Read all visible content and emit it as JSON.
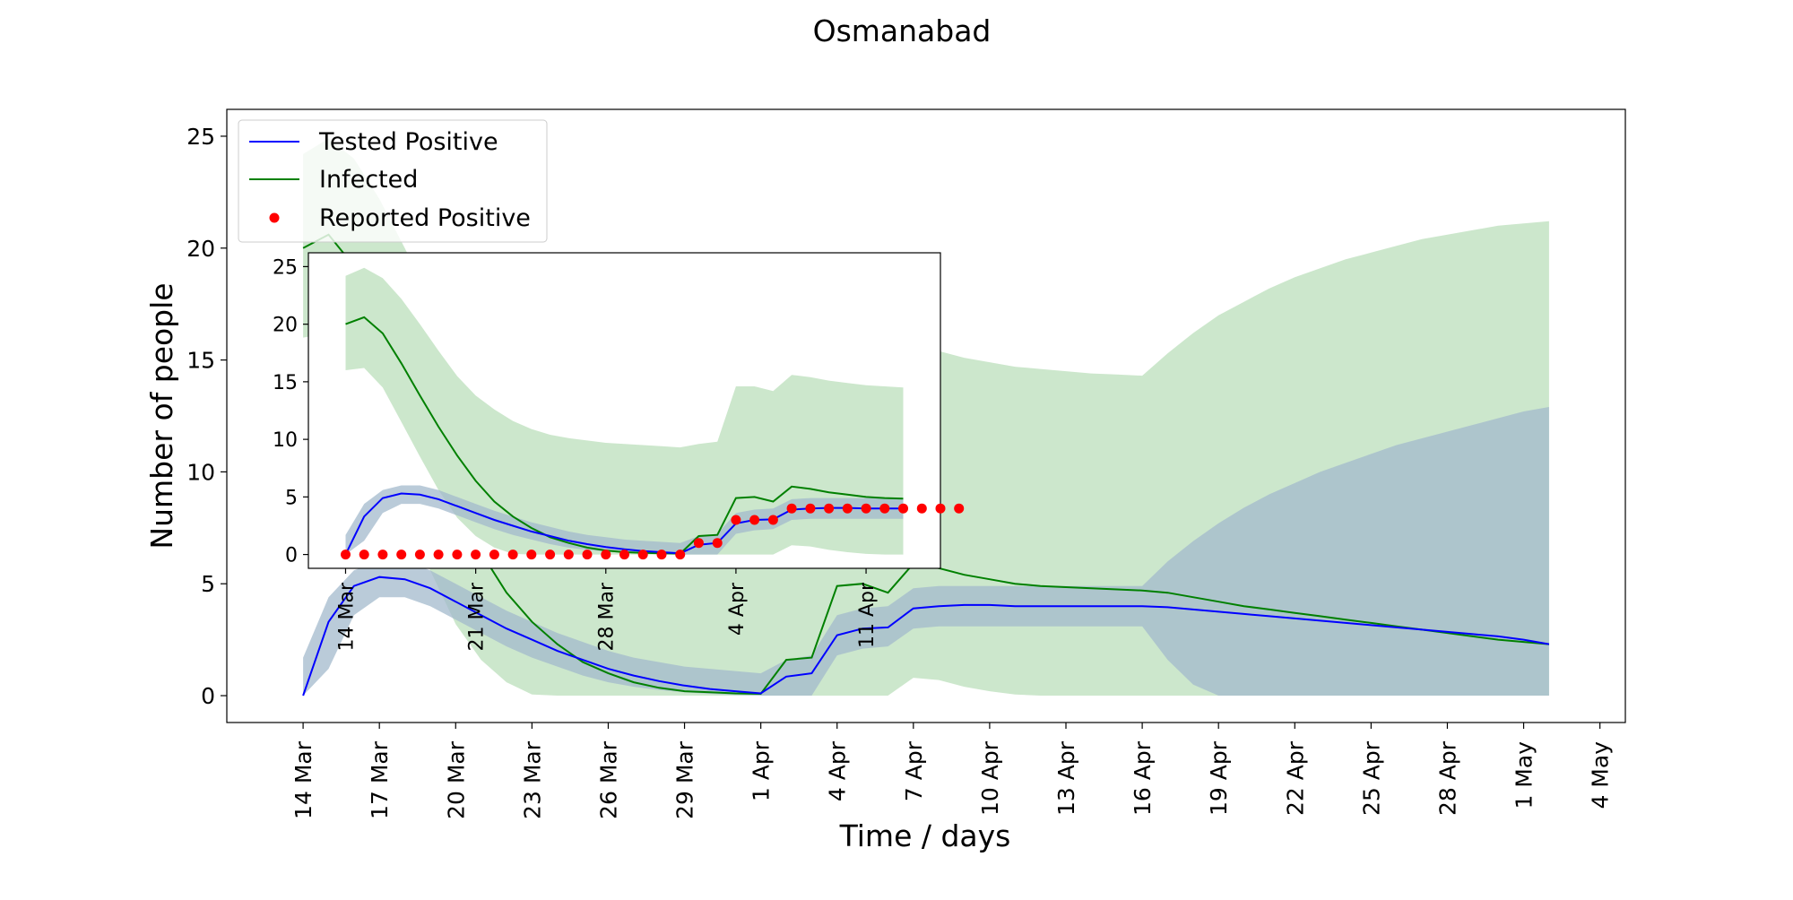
{
  "chart_data": [
    {
      "id": "main",
      "type": "line",
      "title": "Osmanabad",
      "xlabel": "Time / days",
      "ylabel": "Number of people",
      "x_type": "date",
      "x_start": "2020-03-14",
      "xlim": [
        "2020-03-11",
        "2020-05-05"
      ],
      "ylim": [
        -1.2,
        26.2
      ],
      "yticks": [
        0,
        5,
        10,
        15,
        20,
        25
      ],
      "xtick_labels": [
        "14 Mar",
        "17 Mar",
        "20 Mar",
        "23 Mar",
        "26 Mar",
        "29 Mar",
        "1 Apr",
        "4 Apr",
        "7 Apr",
        "10 Apr",
        "13 Apr",
        "16 Apr",
        "19 Apr",
        "22 Apr",
        "25 Apr",
        "28 Apr",
        "1 May",
        "4 May"
      ],
      "xtick_dates": [
        "2020-03-14",
        "2020-03-17",
        "2020-03-20",
        "2020-03-23",
        "2020-03-26",
        "2020-03-29",
        "2020-04-01",
        "2020-04-04",
        "2020-04-07",
        "2020-04-10",
        "2020-04-13",
        "2020-04-16",
        "2020-04-19",
        "2020-04-22",
        "2020-04-25",
        "2020-04-28",
        "2020-05-01",
        "2020-05-04"
      ],
      "legend": {
        "placement": "upper left",
        "entries": [
          {
            "label": "Tested Positive",
            "marker": "line",
            "color": "#0000ff"
          },
          {
            "label": "Infected",
            "marker": "line",
            "color": "#008000"
          },
          {
            "label": "Reported Positive",
            "marker": "dot",
            "color": "#ff0000"
          }
        ]
      },
      "series": [
        {
          "name": "Infected",
          "color": "#008000",
          "band_color": "#8fca8f",
          "x": [
            "2020-03-14",
            "2020-03-15",
            "2020-03-16",
            "2020-03-17",
            "2020-03-18",
            "2020-03-19",
            "2020-03-20",
            "2020-03-21",
            "2020-03-22",
            "2020-03-23",
            "2020-03-24",
            "2020-03-25",
            "2020-03-26",
            "2020-03-27",
            "2020-03-28",
            "2020-03-29",
            "2020-03-30",
            "2020-03-31",
            "2020-04-01",
            "2020-04-02",
            "2020-04-03",
            "2020-04-04",
            "2020-04-05",
            "2020-04-06",
            "2020-04-07",
            "2020-04-08",
            "2020-04-09",
            "2020-04-10",
            "2020-04-11",
            "2020-04-12",
            "2020-04-13",
            "2020-04-14",
            "2020-04-15",
            "2020-04-16",
            "2020-04-17",
            "2020-04-18",
            "2020-04-19",
            "2020-04-20",
            "2020-04-21",
            "2020-04-22",
            "2020-04-23",
            "2020-04-24",
            "2020-04-25",
            "2020-04-26",
            "2020-04-27",
            "2020-04-28",
            "2020-04-29",
            "2020-04-30",
            "2020-05-01",
            "2020-05-02"
          ],
          "values": [
            20.0,
            20.6,
            19.2,
            16.6,
            13.8,
            11.1,
            8.6,
            6.4,
            4.6,
            3.3,
            2.3,
            1.5,
            1.0,
            0.6,
            0.35,
            0.2,
            0.15,
            0.1,
            0.08,
            1.6,
            1.7,
            4.9,
            5.0,
            4.6,
            5.9,
            5.7,
            5.4,
            5.2,
            5.0,
            4.9,
            4.85,
            4.8,
            4.75,
            4.7,
            4.6,
            4.4,
            4.2,
            4.0,
            3.85,
            3.7,
            3.55,
            3.4,
            3.25,
            3.1,
            2.95,
            2.8,
            2.65,
            2.5,
            2.4,
            2.3
          ],
          "lower": [
            16.0,
            16.2,
            14.5,
            11.5,
            8.5,
            5.6,
            3.2,
            1.6,
            0.6,
            0.05,
            0,
            0,
            0,
            0,
            0,
            0,
            0,
            0,
            0,
            0,
            0,
            0,
            0,
            0,
            0.8,
            0.7,
            0.4,
            0.2,
            0.05,
            0,
            0,
            0,
            0,
            0,
            0,
            0,
            0,
            0,
            0,
            0,
            0,
            0,
            0,
            0,
            0,
            0,
            0,
            0,
            0,
            0
          ],
          "upper": [
            24.2,
            24.9,
            24.0,
            22.2,
            20.0,
            17.7,
            15.5,
            13.8,
            12.6,
            11.6,
            10.9,
            10.4,
            10.1,
            9.9,
            9.7,
            9.6,
            9.5,
            9.4,
            9.3,
            9.6,
            9.8,
            14.6,
            14.6,
            14.2,
            15.6,
            15.4,
            15.1,
            14.9,
            14.7,
            14.6,
            14.5,
            14.4,
            14.35,
            14.3,
            15.3,
            16.2,
            17.0,
            17.6,
            18.2,
            18.7,
            19.1,
            19.5,
            19.8,
            20.1,
            20.4,
            20.6,
            20.8,
            21.0,
            21.1,
            21.2
          ]
        },
        {
          "name": "Tested Positive",
          "color": "#0000ff",
          "band_color": "#a3b9cc",
          "x": [
            "2020-03-14",
            "2020-03-15",
            "2020-03-16",
            "2020-03-17",
            "2020-03-18",
            "2020-03-19",
            "2020-03-20",
            "2020-03-21",
            "2020-03-22",
            "2020-03-23",
            "2020-03-24",
            "2020-03-25",
            "2020-03-26",
            "2020-03-27",
            "2020-03-28",
            "2020-03-29",
            "2020-03-30",
            "2020-03-31",
            "2020-04-01",
            "2020-04-02",
            "2020-04-03",
            "2020-04-04",
            "2020-04-05",
            "2020-04-06",
            "2020-04-07",
            "2020-04-08",
            "2020-04-09",
            "2020-04-10",
            "2020-04-11",
            "2020-04-12",
            "2020-04-13",
            "2020-04-14",
            "2020-04-15",
            "2020-04-16",
            "2020-04-17",
            "2020-04-18",
            "2020-04-19",
            "2020-04-20",
            "2020-04-21",
            "2020-04-22",
            "2020-04-23",
            "2020-04-24",
            "2020-04-25",
            "2020-04-26",
            "2020-04-27",
            "2020-04-28",
            "2020-04-29",
            "2020-04-30",
            "2020-05-01",
            "2020-05-02"
          ],
          "values": [
            0,
            3.3,
            4.9,
            5.3,
            5.2,
            4.8,
            4.2,
            3.6,
            3.0,
            2.5,
            2.0,
            1.6,
            1.2,
            0.9,
            0.65,
            0.45,
            0.3,
            0.2,
            0.1,
            0.85,
            1.0,
            2.7,
            3.0,
            3.05,
            3.9,
            4.0,
            4.05,
            4.05,
            4.0,
            4.0,
            4.0,
            4.0,
            4.0,
            4.0,
            3.95,
            3.85,
            3.75,
            3.65,
            3.55,
            3.45,
            3.35,
            3.25,
            3.15,
            3.05,
            2.95,
            2.85,
            2.75,
            2.65,
            2.5,
            2.3
          ],
          "lower": [
            0,
            1.2,
            3.6,
            4.4,
            4.4,
            4.0,
            3.4,
            2.8,
            2.2,
            1.7,
            1.3,
            0.9,
            0.6,
            0.4,
            0.25,
            0.15,
            0.08,
            0.03,
            0,
            0,
            0,
            1.8,
            2.1,
            2.2,
            3.0,
            3.1,
            3.1,
            3.1,
            3.1,
            3.1,
            3.1,
            3.1,
            3.1,
            3.1,
            1.6,
            0.5,
            0,
            0,
            0,
            0,
            0,
            0,
            0,
            0,
            0,
            0,
            0,
            0,
            0,
            0
          ],
          "upper": [
            1.7,
            4.4,
            5.6,
            6.0,
            6.0,
            5.6,
            5.0,
            4.4,
            3.8,
            3.3,
            2.8,
            2.4,
            2.0,
            1.7,
            1.5,
            1.3,
            1.2,
            1.1,
            1.0,
            1.6,
            1.8,
            3.6,
            3.9,
            4.0,
            4.8,
            4.9,
            4.9,
            4.9,
            4.9,
            4.9,
            4.9,
            4.9,
            4.9,
            4.9,
            6.0,
            6.9,
            7.7,
            8.4,
            9.0,
            9.5,
            10.0,
            10.4,
            10.8,
            11.2,
            11.5,
            11.8,
            12.1,
            12.4,
            12.7,
            12.9
          ]
        }
      ]
    },
    {
      "id": "inset",
      "type": "line",
      "x_type": "date",
      "x_start": "2020-03-14",
      "xlim": [
        "2020-03-12",
        "2020-04-15"
      ],
      "ylim": [
        -1.2,
        26.2
      ],
      "yticks": [
        0,
        5,
        10,
        15,
        20,
        25
      ],
      "xtick_labels": [
        "14 Mar",
        "21 Mar",
        "28 Mar",
        "4 Apr",
        "11 Apr"
      ],
      "xtick_dates": [
        "2020-03-14",
        "2020-03-21",
        "2020-03-28",
        "2020-04-04",
        "2020-04-11"
      ],
      "series": [
        {
          "name": "Infected",
          "color": "#008000",
          "band_color": "#8fca8f",
          "x": [
            "2020-03-14",
            "2020-03-15",
            "2020-03-16",
            "2020-03-17",
            "2020-03-18",
            "2020-03-19",
            "2020-03-20",
            "2020-03-21",
            "2020-03-22",
            "2020-03-23",
            "2020-03-24",
            "2020-03-25",
            "2020-03-26",
            "2020-03-27",
            "2020-03-28",
            "2020-03-29",
            "2020-03-30",
            "2020-03-31",
            "2020-04-01",
            "2020-04-02",
            "2020-04-03",
            "2020-04-04",
            "2020-04-05",
            "2020-04-06",
            "2020-04-07",
            "2020-04-08",
            "2020-04-09",
            "2020-04-10",
            "2020-04-11",
            "2020-04-12",
            "2020-04-13"
          ],
          "values": [
            20.0,
            20.6,
            19.2,
            16.6,
            13.8,
            11.1,
            8.6,
            6.4,
            4.6,
            3.3,
            2.3,
            1.5,
            1.0,
            0.6,
            0.35,
            0.2,
            0.15,
            0.1,
            0.08,
            1.6,
            1.7,
            4.9,
            5.0,
            4.6,
            5.9,
            5.7,
            5.4,
            5.2,
            5.0,
            4.9,
            4.85
          ],
          "lower": [
            16.0,
            16.2,
            14.5,
            11.5,
            8.5,
            5.6,
            3.2,
            1.6,
            0.6,
            0.05,
            0,
            0,
            0,
            0,
            0,
            0,
            0,
            0,
            0,
            0,
            0,
            0,
            0,
            0,
            0.8,
            0.7,
            0.4,
            0.2,
            0.05,
            0,
            0
          ],
          "upper": [
            24.2,
            24.9,
            24.0,
            22.2,
            20.0,
            17.7,
            15.5,
            13.8,
            12.6,
            11.6,
            10.9,
            10.4,
            10.1,
            9.9,
            9.7,
            9.6,
            9.5,
            9.4,
            9.3,
            9.6,
            9.8,
            14.6,
            14.6,
            14.2,
            15.6,
            15.4,
            15.1,
            14.9,
            14.7,
            14.6,
            14.5
          ]
        },
        {
          "name": "Tested Positive",
          "color": "#0000ff",
          "band_color": "#a3b9cc",
          "x": [
            "2020-03-14",
            "2020-03-15",
            "2020-03-16",
            "2020-03-17",
            "2020-03-18",
            "2020-03-19",
            "2020-03-20",
            "2020-03-21",
            "2020-03-22",
            "2020-03-23",
            "2020-03-24",
            "2020-03-25",
            "2020-03-26",
            "2020-03-27",
            "2020-03-28",
            "2020-03-29",
            "2020-03-30",
            "2020-03-31",
            "2020-04-01",
            "2020-04-02",
            "2020-04-03",
            "2020-04-04",
            "2020-04-05",
            "2020-04-06",
            "2020-04-07",
            "2020-04-08",
            "2020-04-09",
            "2020-04-10",
            "2020-04-11",
            "2020-04-12",
            "2020-04-13"
          ],
          "values": [
            0,
            3.3,
            4.9,
            5.3,
            5.2,
            4.8,
            4.2,
            3.6,
            3.0,
            2.5,
            2.0,
            1.6,
            1.2,
            0.9,
            0.65,
            0.45,
            0.3,
            0.2,
            0.1,
            0.85,
            1.0,
            2.7,
            3.0,
            3.05,
            3.9,
            4.0,
            4.05,
            4.05,
            4.0,
            4.0,
            4.0
          ],
          "lower": [
            0,
            1.2,
            3.6,
            4.4,
            4.4,
            4.0,
            3.4,
            2.8,
            2.2,
            1.7,
            1.3,
            0.9,
            0.6,
            0.4,
            0.25,
            0.15,
            0.08,
            0.03,
            0,
            0,
            0,
            1.8,
            2.1,
            2.2,
            3.0,
            3.1,
            3.1,
            3.1,
            3.1,
            3.1,
            3.1
          ],
          "upper": [
            1.7,
            4.4,
            5.6,
            6.0,
            6.0,
            5.6,
            5.0,
            4.4,
            3.8,
            3.3,
            2.8,
            2.4,
            2.0,
            1.7,
            1.5,
            1.3,
            1.2,
            1.1,
            1.0,
            1.6,
            1.8,
            3.6,
            3.9,
            4.0,
            4.8,
            4.9,
            4.9,
            4.9,
            4.9,
            4.9,
            4.9
          ]
        },
        {
          "name": "Reported Positive",
          "type": "scatter",
          "color": "#ff0000",
          "x": [
            "2020-03-14",
            "2020-03-15",
            "2020-03-16",
            "2020-03-17",
            "2020-03-18",
            "2020-03-19",
            "2020-03-20",
            "2020-03-21",
            "2020-03-22",
            "2020-03-23",
            "2020-03-24",
            "2020-03-25",
            "2020-03-26",
            "2020-03-27",
            "2020-03-28",
            "2020-03-29",
            "2020-03-30",
            "2020-03-31",
            "2020-04-01",
            "2020-04-02",
            "2020-04-03",
            "2020-04-04",
            "2020-04-05",
            "2020-04-06",
            "2020-04-07",
            "2020-04-08",
            "2020-04-09",
            "2020-04-10",
            "2020-04-11",
            "2020-04-12",
            "2020-04-13",
            "2020-04-14",
            "2020-04-15",
            "2020-04-16"
          ],
          "values": [
            0,
            0,
            0,
            0,
            0,
            0,
            0,
            0,
            0,
            0,
            0,
            0,
            0,
            0,
            0,
            0,
            0,
            0,
            0,
            1,
            1,
            3,
            3,
            3,
            4,
            4,
            4,
            4,
            4,
            4,
            4,
            4,
            4,
            4
          ]
        }
      ]
    }
  ]
}
